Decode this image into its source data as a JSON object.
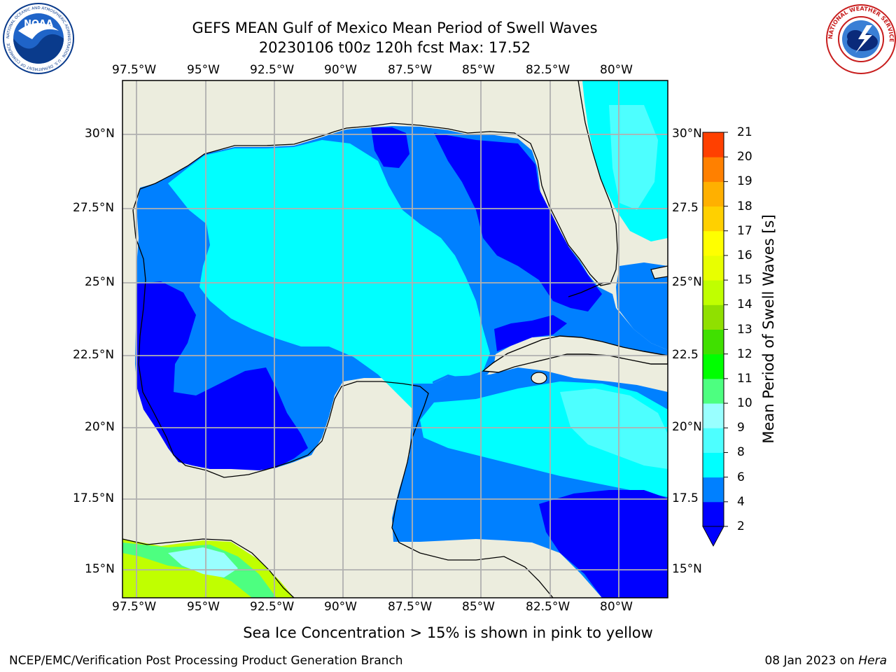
{
  "title_line1": "GEFS MEAN Gulf of Mexico Mean Period of Swell Waves",
  "title_line2": "20230106 t00z 120h fcst   Max: 17.52",
  "logos": {
    "left": {
      "name": "noaa-logo",
      "text": "NOAA",
      "ring_text": "NATIONAL OCEANIC AND ATMOSPHERIC ADMINISTRATION · U.S. DEPARTMENT OF COMMERCE"
    },
    "right": {
      "name": "nws-logo",
      "ring_text": "NATIONAL WEATHER SERVICE"
    }
  },
  "map": {
    "lon_labels_top": [
      "97.5°W",
      "95°W",
      "92.5°W",
      "90°W",
      "87.5°W",
      "85°W",
      "82.5°W",
      "80°W"
    ],
    "lon_labels_bottom": [
      "97.5°W",
      "95°W",
      "92.5°W",
      "90°W",
      "87.5°W",
      "85°W",
      "82.5°W",
      "80°W"
    ],
    "lat_labels_left": [
      "30°N",
      "27.5°N",
      "25°N",
      "22.5°N",
      "20°N",
      "17.5°N",
      "15°N"
    ],
    "lat_labels_right": [
      "30°N",
      "27.5",
      "25°N",
      "22.5",
      "20°N",
      "17.5",
      "15°N"
    ],
    "land_color": "#ecedde",
    "grid_color": "#b0b0b0"
  },
  "colorbar": {
    "title": "Mean Period of Swell Waves [s]",
    "extend": "min",
    "ticks": [
      "2",
      "4",
      "6",
      "8",
      "9",
      "10",
      "11",
      "12",
      "13",
      "14",
      "15",
      "16",
      "17",
      "18",
      "19",
      "20",
      "21"
    ],
    "colors": [
      "#0000ff",
      "#0080ff",
      "#00ffff",
      "#4dffff",
      "#99ffff",
      "#4dff80",
      "#00ff00",
      "#40e000",
      "#90e000",
      "#c0ff00",
      "#e8ff00",
      "#ffff00",
      "#ffd000",
      "#ffb000",
      "#ff8000",
      "#ff4000",
      "#ff0000"
    ],
    "extend_color": "#0000ff"
  },
  "ice_note": "Sea Ice Concentration > 15% is shown in pink to yellow",
  "footer_left": "NCEP/EMC/Verification Post Processing Product Generation Branch",
  "footer_date": "08 Jan 2023 on",
  "footer_host": "Hera"
}
